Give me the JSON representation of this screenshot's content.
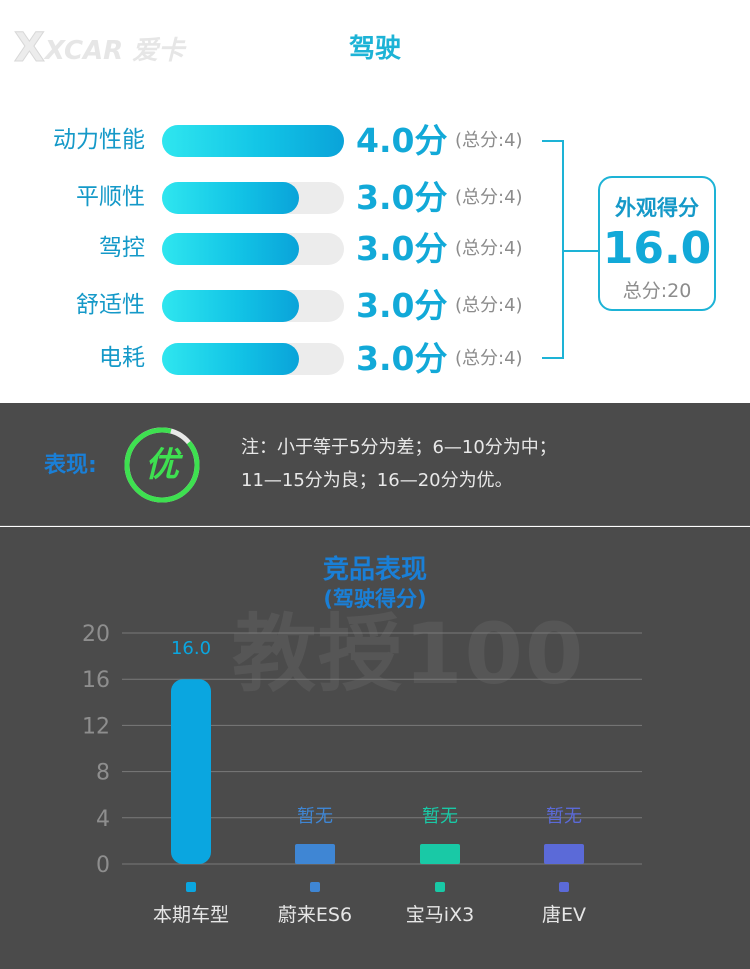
{
  "header": {
    "logo_text": "XCAR 爱卡",
    "title": "驾驶"
  },
  "ratings": [
    {
      "label": "动力性能",
      "score": 4.0,
      "score_text": "4.0分",
      "max_text": "(总分:4)",
      "max": 4
    },
    {
      "label": "平顺性",
      "score": 3.0,
      "score_text": "3.0分",
      "max_text": "(总分:4)",
      "max": 4
    },
    {
      "label": "驾控",
      "score": 3.0,
      "score_text": "3.0分",
      "max_text": "(总分:4)",
      "max": 4
    },
    {
      "label": "舒适性",
      "score": 3.0,
      "score_text": "3.0分",
      "max_text": "(总分:4)",
      "max": 4
    },
    {
      "label": "电耗",
      "score": 3.0,
      "score_text": "3.0分",
      "max_text": "(总分:4)",
      "max": 4
    }
  ],
  "total": {
    "heading": "外观得分",
    "value": "16.0",
    "max_text": "总分:20"
  },
  "performance": {
    "label": "表现:",
    "grade": "优",
    "note_line1": "注：小于等于5分为差；6—10分为中；",
    "note_line2": "11—15分为良；16—20分为优。"
  },
  "watermark": "教授100",
  "colors": {
    "accent": "#1db3d6",
    "label_blue": "#1599c8",
    "grade_green": "#3ee050",
    "dark_bg": "#4b4b4b"
  },
  "chart_data": {
    "type": "bar",
    "title": "竞品表现",
    "subtitle": "(驾驶得分)",
    "categories": [
      "本期车型",
      "蔚来ES6",
      "宝马iX3",
      "唐EV"
    ],
    "values": [
      16.0,
      null,
      null,
      null
    ],
    "data_labels": [
      "16.0",
      "暂无",
      "暂无",
      "暂无"
    ],
    "colors": [
      "#0aa6e0",
      "#3f86d4",
      "#19c9a6",
      "#5b6ad8"
    ],
    "ylim": [
      0,
      20
    ],
    "yticks": [
      0,
      4,
      8,
      12,
      16,
      20
    ],
    "grid": true,
    "legend": "bottom"
  }
}
